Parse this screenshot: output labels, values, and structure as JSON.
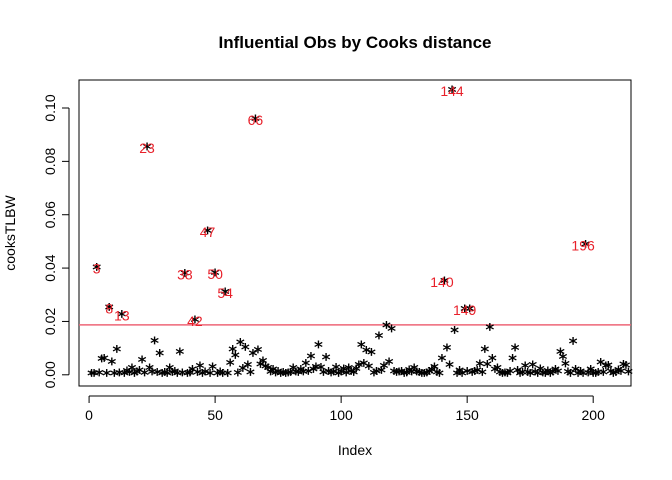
{
  "chart_data": {
    "type": "scatter",
    "title": "Influential Obs by Cooks distance",
    "xlabel": "Index",
    "ylabel": "cooksTLBW",
    "xlim": [
      -4,
      215
    ],
    "ylim": [
      -0.0042,
      0.1105
    ],
    "x_ticks": [
      0,
      50,
      100,
      150,
      200
    ],
    "x_tick_labels": [
      "0",
      "50",
      "100",
      "150",
      "200"
    ],
    "y_ticks": [
      0.0,
      0.02,
      0.04,
      0.06,
      0.08,
      0.1
    ],
    "y_tick_labels": [
      "0.00",
      "0.02",
      "0.04",
      "0.06",
      "0.08",
      "0.10"
    ],
    "marker": "*",
    "marker_color": "#000000",
    "threshold": {
      "value": 0.0187,
      "color": "#ee6677"
    },
    "annotation_color": "#e8202a",
    "values": [
      0.0001,
      0.0001,
      0.0399,
      0.0003,
      0.0055,
      0.0058,
      0.0002,
      0.0249,
      0.0044,
      0.0002,
      0.0091,
      0.0003,
      0.0222,
      0.0002,
      0.0011,
      0.0004,
      0.0022,
      0.0001,
      0.0007,
      0.0013,
      0.0051,
      0.0003,
      0.0851,
      0.0022,
      0.0006,
      0.0122,
      0.0004,
      0.0076,
      0.0002,
      0.0005,
      0.0001,
      0.0021,
      0.0004,
      0.0009,
      0.0001,
      0.0081,
      0.0003,
      0.0376,
      0.0001,
      0.0003,
      0.0017,
      0.0201,
      0.0004,
      0.0029,
      0.0001,
      0.0007,
      0.0535,
      0.0002,
      0.0026,
      0.0378,
      0.0002,
      0.0006,
      0.0002,
      0.0307,
      0.0001,
      0.0041,
      0.0092,
      0.0068,
      0.0003,
      0.0117,
      0.0019,
      0.0099,
      0.0033,
      0.0005,
      0.0076,
      0.0955,
      0.0089,
      0.0035,
      0.0048,
      0.0028,
      0.0021,
      0.0006,
      0.0017,
      0.0003,
      0.0009,
      0.0002,
      0.0004,
      0.0001,
      0.0003,
      0.0005,
      0.0022,
      0.0006,
      0.0004,
      0.0016,
      0.0006,
      0.0038,
      0.0009,
      0.0064,
      0.0017,
      0.0026,
      0.0108,
      0.0023,
      0.0005,
      0.0061,
      0.0009,
      0.0003,
      0.0007,
      0.0023,
      0.0002,
      0.0007,
      0.0018,
      0.0003,
      0.0022,
      0.0009,
      0.0004,
      0.0018,
      0.0033,
      0.0108,
      0.0039,
      0.0088,
      0.0027,
      0.0079,
      0.0003,
      0.0009,
      0.0142,
      0.0012,
      0.0029,
      0.0181,
      0.0045,
      0.0168,
      0.0008,
      0.0004,
      0.0006,
      0.0009,
      0.0002,
      0.0003,
      0.0015,
      0.0006,
      0.0021,
      0.0007,
      0.0004,
      0.0002,
      0.0001,
      0.0003,
      0.0009,
      0.0014,
      0.0026,
      0.0004,
      0.0001,
      0.0058,
      0.0348,
      0.0097,
      0.0033,
      0.1063,
      0.0163,
      0.0001,
      0.0012,
      0.0002,
      0.0242,
      0.0009,
      0.0242,
      0.0005,
      0.0008,
      0.0012,
      0.0037,
      0.0004,
      0.0091,
      0.0034,
      0.0174,
      0.0057,
      0.0016,
      0.0021,
      0.0004,
      0.0002,
      0.0003,
      0.0002,
      0.0008,
      0.0058,
      0.0096,
      0.0012,
      0.0002,
      0.0005,
      0.0029,
      0.0004,
      0.0001,
      0.0033,
      0.0007,
      0.0002,
      0.0018,
      0.0003,
      0.0002,
      0.0011,
      0.0001,
      0.0006,
      0.0016,
      0.0009,
      0.0081,
      0.0063,
      0.0036,
      0.0006,
      0.0001,
      0.0121,
      0.0017,
      0.0002,
      0.0009,
      0.0001,
      0.0484,
      0.0003,
      0.0016,
      0.0001,
      0.0002,
      0.0004,
      0.0043,
      0.0004,
      0.0029,
      0.0031,
      0.0008,
      0.0002,
      0.0004,
      0.0014,
      0.0009,
      0.0034,
      0.0032,
      0.0006
    ],
    "annotations": [
      {
        "index": 3,
        "label": "3",
        "y": 0.0399
      },
      {
        "index": 8,
        "label": "8",
        "y": 0.0249
      },
      {
        "index": 13,
        "label": "13",
        "y": 0.0222
      },
      {
        "index": 23,
        "label": "23",
        "y": 0.0851
      },
      {
        "index": 38,
        "label": "38",
        "y": 0.0376
      },
      {
        "index": 42,
        "label": "42",
        "y": 0.0201
      },
      {
        "index": 47,
        "label": "47",
        "y": 0.0535
      },
      {
        "index": 50,
        "label": "50",
        "y": 0.0378
      },
      {
        "index": 54,
        "label": "54",
        "y": 0.0307
      },
      {
        "index": 66,
        "label": "66",
        "y": 0.0955
      },
      {
        "index": 140,
        "label": "140",
        "y": 0.0348
      },
      {
        "index": 144,
        "label": "144",
        "y": 0.1063
      },
      {
        "index": 149,
        "label": "149",
        "y": 0.0242
      },
      {
        "index": 196,
        "label": "196",
        "y": 0.0484
      }
    ]
  }
}
